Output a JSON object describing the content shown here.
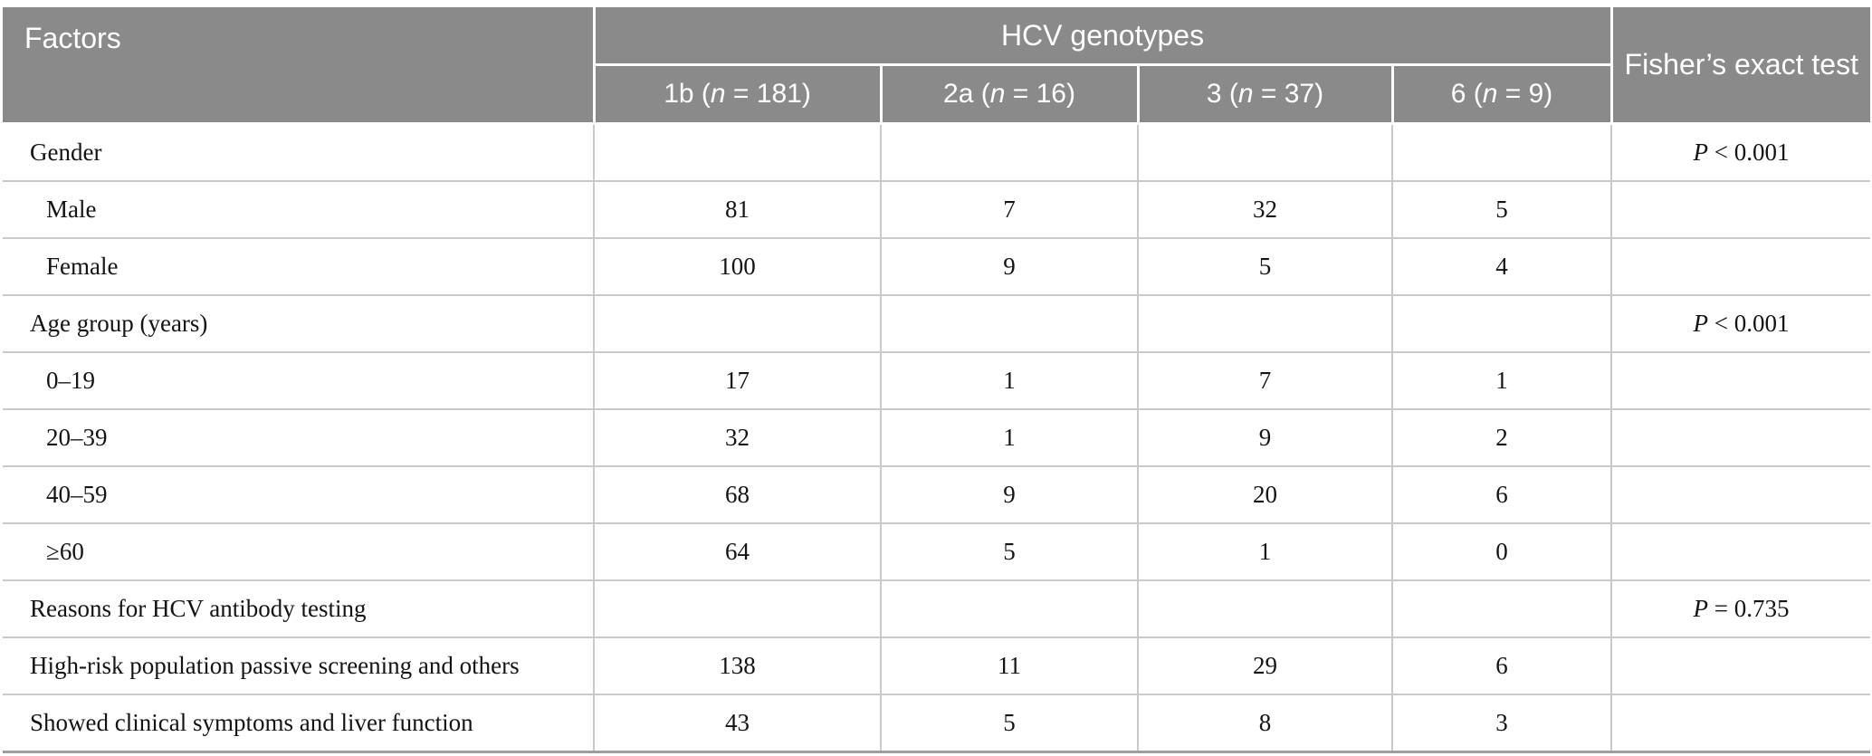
{
  "table": {
    "header": {
      "factors_label": "Factors",
      "group_label": "HCV genotypes",
      "fisher_label": "Fisher’s exact test",
      "genotype_columns": [
        {
          "id": "1b",
          "prefix": "1b (",
          "italic": "n",
          "suffix": " = 181)"
        },
        {
          "id": "2a",
          "prefix": "2a (",
          "italic": "n",
          "suffix": " = 16)"
        },
        {
          "id": "3",
          "prefix": "3 (",
          "italic": "n",
          "suffix": " = 37)"
        },
        {
          "id": "6",
          "prefix": "6 (",
          "italic": "n",
          "suffix": " = 9)"
        }
      ]
    },
    "rows": [
      {
        "label": "Gender",
        "indent": false,
        "values": [
          "",
          "",
          "",
          ""
        ],
        "p": "P < 0.001"
      },
      {
        "label": "Male",
        "indent": true,
        "values": [
          "81",
          "7",
          "32",
          "5"
        ],
        "p": ""
      },
      {
        "label": "Female",
        "indent": true,
        "values": [
          "100",
          "9",
          "5",
          "4"
        ],
        "p": ""
      },
      {
        "label": "Age group (years)",
        "indent": false,
        "values": [
          "",
          "",
          "",
          ""
        ],
        "p": "P < 0.001"
      },
      {
        "label": "0–19",
        "indent": true,
        "values": [
          "17",
          "1",
          "7",
          "1"
        ],
        "p": ""
      },
      {
        "label": "20–39",
        "indent": true,
        "values": [
          "32",
          "1",
          "9",
          "2"
        ],
        "p": ""
      },
      {
        "label": "40–59",
        "indent": true,
        "values": [
          "68",
          "9",
          "20",
          "6"
        ],
        "p": ""
      },
      {
        "label": "≥60",
        "indent": true,
        "values": [
          "64",
          "5",
          "1",
          "0"
        ],
        "p": ""
      },
      {
        "label": "Reasons for HCV antibody testing",
        "indent": false,
        "values": [
          "",
          "",
          "",
          ""
        ],
        "p": "P = 0.735"
      },
      {
        "label": "High-risk population passive screening and others",
        "indent": false,
        "values": [
          "138",
          "11",
          "29",
          "6"
        ],
        "p": ""
      },
      {
        "label": "Showed clinical symptoms and liver function",
        "indent": false,
        "values": [
          "43",
          "5",
          "8",
          "3"
        ],
        "p": ""
      }
    ],
    "colors": {
      "header_background": "#8a8a8a",
      "header_text": "#ffffff",
      "grid_line": "#c9c9c9",
      "bottom_rule": "#9e9e9e",
      "body_text": "#141414"
    }
  }
}
